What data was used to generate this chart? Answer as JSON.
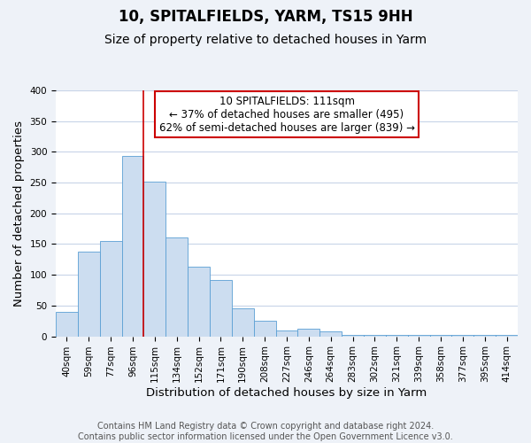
{
  "title": "10, SPITALFIELDS, YARM, TS15 9HH",
  "subtitle": "Size of property relative to detached houses in Yarm",
  "xlabel": "Distribution of detached houses by size in Yarm",
  "ylabel": "Number of detached properties",
  "bar_color": "#ccddf0",
  "bar_edge_color": "#5a9fd4",
  "categories": [
    "40sqm",
    "59sqm",
    "77sqm",
    "96sqm",
    "115sqm",
    "134sqm",
    "152sqm",
    "171sqm",
    "190sqm",
    "208sqm",
    "227sqm",
    "246sqm",
    "264sqm",
    "283sqm",
    "302sqm",
    "321sqm",
    "339sqm",
    "358sqm",
    "377sqm",
    "395sqm",
    "414sqm"
  ],
  "values": [
    40,
    138,
    155,
    293,
    251,
    161,
    113,
    92,
    46,
    25,
    10,
    13,
    8,
    2,
    2,
    2,
    2,
    2,
    2,
    2,
    2
  ],
  "ylim": [
    0,
    400
  ],
  "yticks": [
    0,
    50,
    100,
    150,
    200,
    250,
    300,
    350,
    400
  ],
  "vline_index": 4,
  "annotation_line1": "10 SPITALFIELDS: 111sqm",
  "annotation_line2": "← 37% of detached houses are smaller (495)",
  "annotation_line3": "62% of semi-detached houses are larger (839) →",
  "vline_color": "#cc0000",
  "box_edge_color": "#cc0000",
  "footer_line1": "Contains HM Land Registry data © Crown copyright and database right 2024.",
  "footer_line2": "Contains public sector information licensed under the Open Government Licence v3.0.",
  "background_color": "#eef2f8",
  "plot_background_color": "#ffffff",
  "grid_color": "#c8d4e8",
  "title_fontsize": 12,
  "subtitle_fontsize": 10,
  "axis_label_fontsize": 9.5,
  "tick_fontsize": 7.5,
  "annotation_fontsize": 8.5,
  "footer_fontsize": 7
}
